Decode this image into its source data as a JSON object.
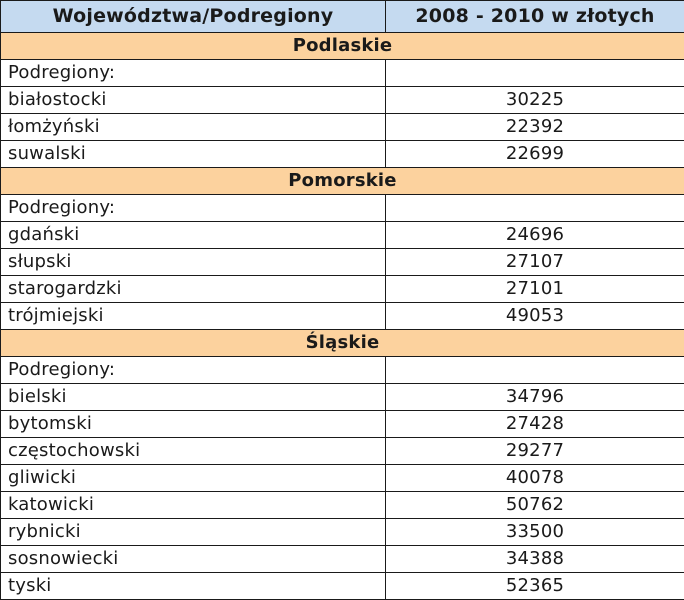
{
  "header": {
    "col1": "Województwa/Podregiony",
    "col2": "2008 - 2010  w złotych"
  },
  "sections": [
    {
      "region": "Podlaskie",
      "subheader": "Podregiony:",
      "rows": [
        {
          "name": "białostocki",
          "value": "30225"
        },
        {
          "name": "łomżyński",
          "value": "22392"
        },
        {
          "name": "suwalski",
          "value": "22699"
        }
      ]
    },
    {
      "region": "Pomorskie",
      "subheader": "Podregiony:",
      "rows": [
        {
          "name": "gdański",
          "value": "24696"
        },
        {
          "name": "słupski",
          "value": "27107"
        },
        {
          "name": "starogardzki",
          "value": "27101"
        },
        {
          "name": "trójmiejski",
          "value": "49053"
        }
      ]
    },
    {
      "region": "Śląskie",
      "subheader": "Podregiony:",
      "rows": [
        {
          "name": "bielski",
          "value": "34796"
        },
        {
          "name": "bytomski",
          "value": "27428"
        },
        {
          "name": "częstochowski",
          "value": "29277"
        },
        {
          "name": "gliwicki",
          "value": "40078"
        },
        {
          "name": "katowicki",
          "value": "50762"
        },
        {
          "name": "rybnicki",
          "value": "33500"
        },
        {
          "name": "sosnowiecki",
          "value": "34388"
        },
        {
          "name": "tyski",
          "value": "52365"
        }
      ]
    }
  ]
}
